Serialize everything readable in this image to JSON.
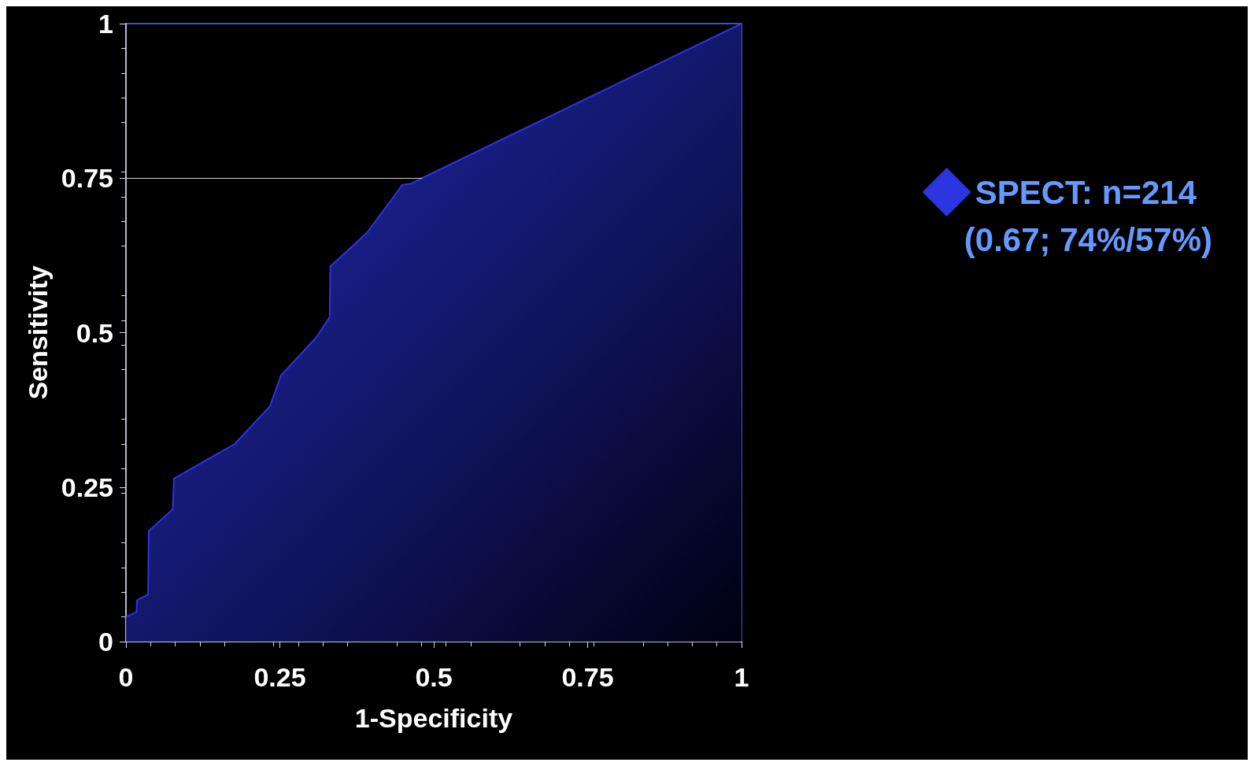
{
  "chart_data": {
    "type": "area",
    "xlabel": "1-Specificity",
    "ylabel": "Sensitivity",
    "x": [
      0,
      0.017,
      0.018,
      0.036,
      0.037,
      0.076,
      0.078,
      0.177,
      0.234,
      0.252,
      0.309,
      0.331,
      0.332,
      0.392,
      0.449,
      0.463,
      0.481,
      1
    ],
    "series": [
      {
        "name": "SPECT: n=214",
        "color": "#2b35e0",
        "values": [
          0.04,
          0.048,
          0.067,
          0.076,
          0.179,
          0.214,
          0.264,
          0.32,
          0.381,
          0.431,
          0.492,
          0.525,
          0.607,
          0.662,
          0.739,
          0.741,
          0.75,
          1
        ]
      }
    ],
    "annotations": [
      "(0.67; 74%/57%)"
    ],
    "ref_lines": [
      {
        "axis": "y",
        "value": 0.75,
        "color": "#cccccc"
      }
    ],
    "xlim": [
      0,
      1
    ],
    "ylim": [
      0,
      1
    ],
    "xticks": [
      0,
      0.25,
      0.5,
      0.75,
      1
    ],
    "yticks": [
      0,
      0.25,
      0.5,
      0.75,
      1
    ],
    "grid": false,
    "legend": "right",
    "marker": "none"
  }
}
